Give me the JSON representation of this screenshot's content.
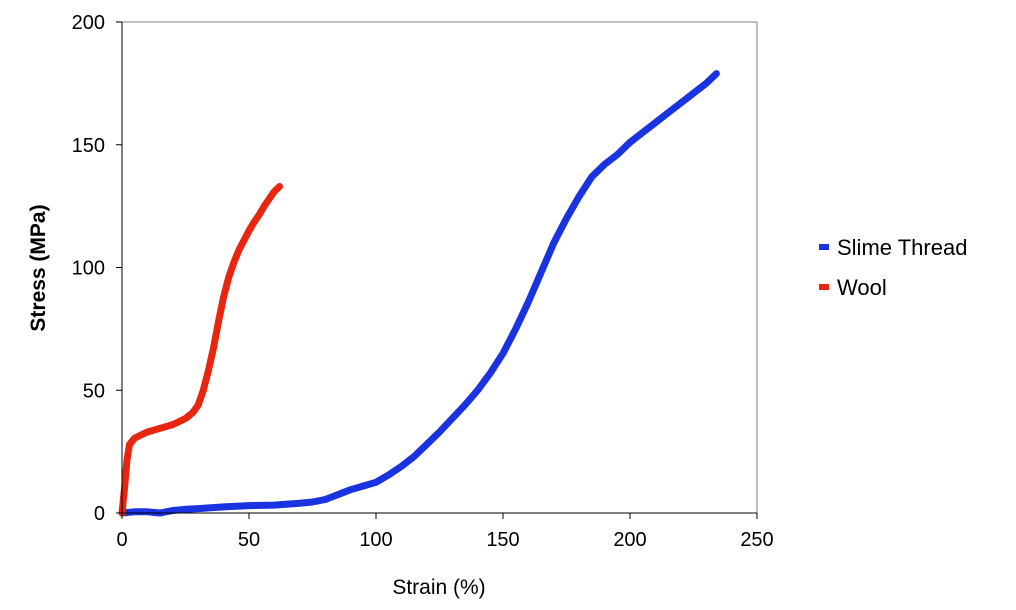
{
  "chart_data": {
    "type": "line",
    "xlabel": "Strain (%)",
    "ylabel": "Stress (MPa)",
    "xlim": [
      0,
      250
    ],
    "ylim": [
      0,
      200
    ],
    "xticks": [
      0,
      50,
      100,
      150,
      200,
      250
    ],
    "yticks": [
      0,
      50,
      100,
      150,
      200
    ],
    "x_tick_labels": [
      "0",
      "50",
      "100",
      "150",
      "200",
      "250"
    ],
    "y_tick_labels": [
      "0",
      "50",
      "100",
      "150",
      "200"
    ],
    "grid": false,
    "legend_position": "right",
    "series": [
      {
        "name": "Slime Thread",
        "color": "#1a33e0",
        "x": [
          0,
          5,
          10,
          15,
          20,
          25,
          30,
          40,
          50,
          60,
          70,
          75,
          80,
          85,
          90,
          95,
          100,
          105,
          110,
          115,
          120,
          125,
          130,
          135,
          140,
          145,
          150,
          155,
          160,
          165,
          170,
          175,
          180,
          185,
          190,
          195,
          200,
          205,
          210,
          215,
          220,
          225,
          230,
          234
        ],
        "y": [
          0,
          0.5,
          0.5,
          0,
          1,
          1.5,
          1.8,
          2.5,
          3,
          3.2,
          4,
          4.5,
          5.5,
          7.5,
          9.5,
          11,
          12.5,
          15.5,
          19,
          23,
          28,
          33,
          38.5,
          44,
          50,
          57,
          65,
          75,
          86,
          98,
          110,
          120,
          129,
          137,
          142,
          146,
          151,
          155,
          159,
          163,
          167,
          171,
          175,
          179
        ]
      },
      {
        "name": "Wool",
        "color": "#e8260f",
        "x": [
          0,
          1,
          2,
          3,
          5,
          8,
          10,
          15,
          20,
          25,
          28,
          30,
          32,
          34,
          36,
          38,
          40,
          42,
          44,
          46,
          48,
          50,
          52,
          54,
          56,
          58,
          60,
          62
        ],
        "y": [
          0,
          10,
          22,
          28,
          30.5,
          32,
          33,
          34.5,
          36,
          38.5,
          41,
          44,
          50,
          58,
          67,
          78,
          88,
          96,
          102,
          107,
          111,
          115,
          118.5,
          121.5,
          125,
          128,
          131,
          133
        ]
      }
    ]
  }
}
